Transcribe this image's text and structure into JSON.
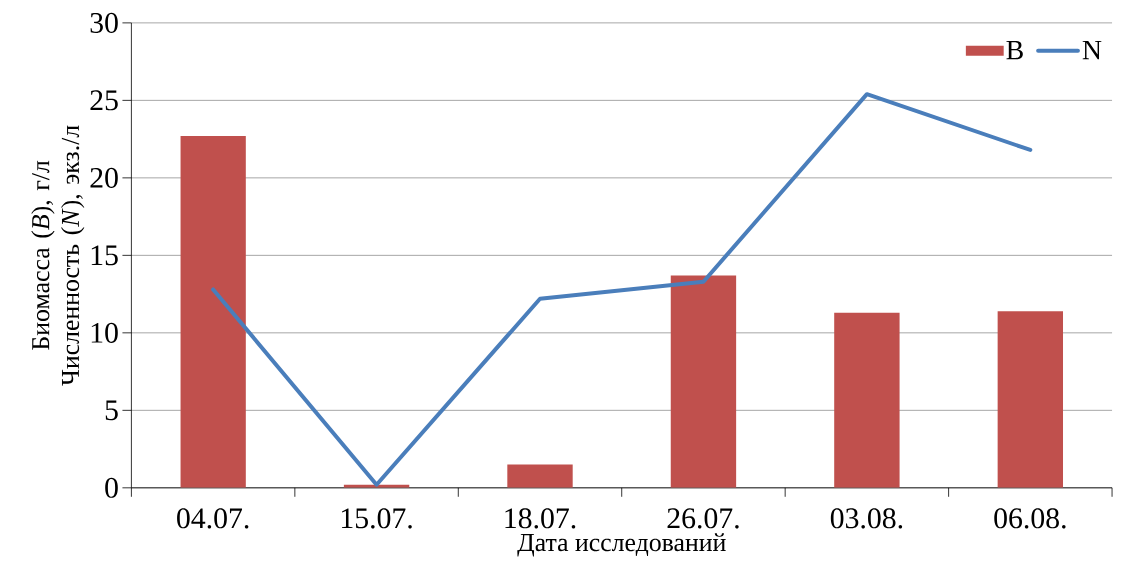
{
  "chart_data": {
    "type": "bar",
    "xlabel": "Дата исследований",
    "ylabel": "Биомасса (*B*), г/л Численность (*N*), экз./л",
    "categories": [
      "04.07.",
      "15.07.",
      "18.07.",
      "26.07.",
      "03.08.",
      "06.08."
    ],
    "series": [
      {
        "name": "B",
        "color": "#c0504d",
        "values": [
          22.7,
          0.2,
          1.5,
          13.7,
          11.3,
          11.4
        ]
      },
      {
        "name": "N",
        "type": "line",
        "color": "#4a7ebb",
        "values": [
          12.8,
          0.2,
          12.2,
          13.3,
          25.4,
          21.8
        ]
      }
    ],
    "ylim": [
      0,
      30
    ],
    "yticks": [
      0,
      5,
      10,
      15,
      20,
      25,
      30
    ],
    "grid": "y",
    "legend": "top right",
    "marker": "none",
    "line_style": "solid"
  }
}
